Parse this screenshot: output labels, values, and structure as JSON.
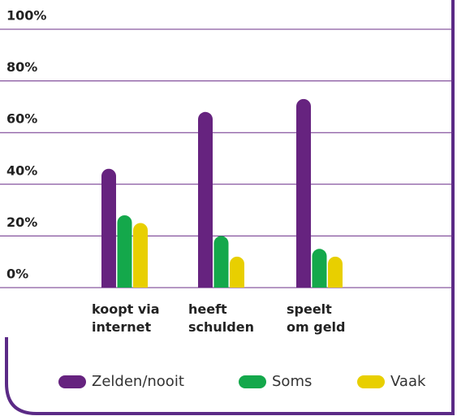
{
  "chart_data": {
    "type": "bar",
    "categories": [
      "koopt via\ninternet",
      "heeft\nschulden",
      "speelt\nom geld"
    ],
    "series": [
      {
        "name": "Zelden/nooit",
        "color": "#66237f",
        "values": [
          46,
          68,
          73
        ]
      },
      {
        "name": "Soms",
        "color": "#14a84b",
        "values": [
          28,
          20,
          15
        ]
      },
      {
        "name": "Vaak",
        "color": "#e8cf00",
        "values": [
          25,
          12,
          12
        ]
      }
    ],
    "ylim": [
      0,
      100
    ],
    "yticks": [
      {
        "value": 0,
        "label": "0%"
      },
      {
        "value": 20,
        "label": "20%"
      },
      {
        "value": 40,
        "label": "40%"
      },
      {
        "value": 60,
        "label": "60%"
      },
      {
        "value": 80,
        "label": "80%"
      },
      {
        "value": 100,
        "label": "100%"
      }
    ],
    "grid": true
  }
}
